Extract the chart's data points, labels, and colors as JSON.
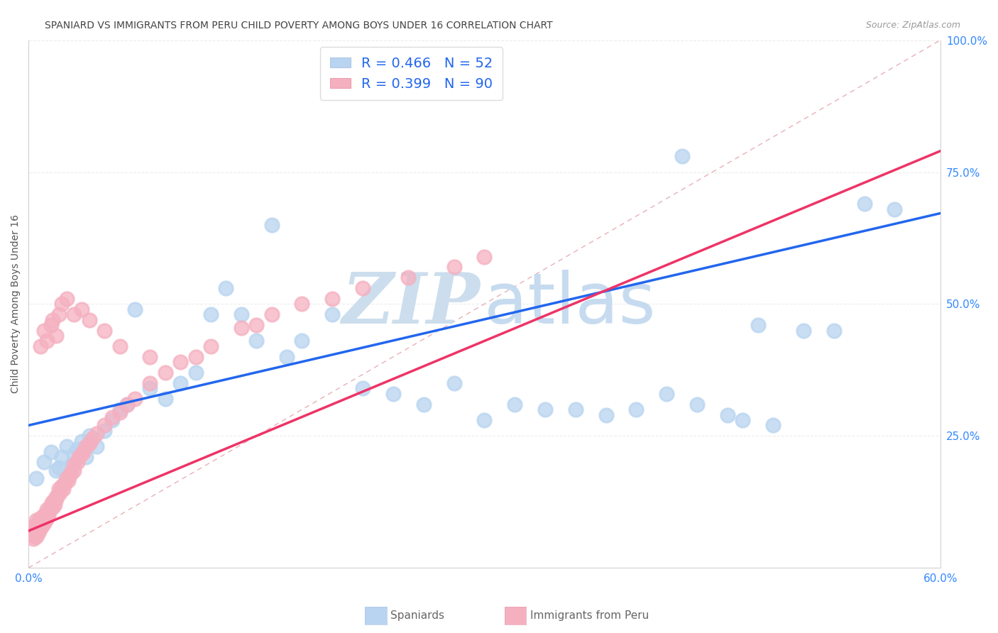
{
  "title": "SPANIARD VS IMMIGRANTS FROM PERU CHILD POVERTY AMONG BOYS UNDER 16 CORRELATION CHART",
  "source": "Source: ZipAtlas.com",
  "ylabel": "Child Poverty Among Boys Under 16",
  "xlim": [
    0.0,
    0.6
  ],
  "ylim": [
    0.0,
    1.0
  ],
  "spaniards_R": 0.466,
  "spaniards_N": 52,
  "peru_R": 0.399,
  "peru_N": 90,
  "spaniards_color": "#b8d4f0",
  "peru_color": "#f5b0c0",
  "spaniards_line_color": "#2266ee",
  "peru_line_color": "#ee3366",
  "ref_line_color": "#e0b0b0",
  "legend_text_color": "#2266ee",
  "tick_color": "#3388ff",
  "watermark_zip_color": "#d5e8f5",
  "watermark_atlas_color": "#c8dff0",
  "grid_color": "#e5e5e5",
  "title_color": "#444444",
  "source_color": "#999999",
  "sp_x": [
    0.005,
    0.01,
    0.015,
    0.018,
    0.02,
    0.022,
    0.025,
    0.028,
    0.03,
    0.032,
    0.035,
    0.038,
    0.04,
    0.045,
    0.05,
    0.055,
    0.06,
    0.065,
    0.07,
    0.08,
    0.09,
    0.1,
    0.11,
    0.12,
    0.13,
    0.14,
    0.15,
    0.16,
    0.17,
    0.18,
    0.2,
    0.22,
    0.24,
    0.26,
    0.28,
    0.3,
    0.32,
    0.34,
    0.36,
    0.38,
    0.4,
    0.42,
    0.44,
    0.46,
    0.47,
    0.49,
    0.51,
    0.53,
    0.55,
    0.57,
    0.43,
    0.48
  ],
  "sp_y": [
    0.17,
    0.2,
    0.22,
    0.185,
    0.19,
    0.21,
    0.23,
    0.195,
    0.215,
    0.225,
    0.24,
    0.21,
    0.25,
    0.23,
    0.26,
    0.28,
    0.3,
    0.31,
    0.49,
    0.34,
    0.32,
    0.35,
    0.37,
    0.48,
    0.53,
    0.48,
    0.43,
    0.65,
    0.4,
    0.43,
    0.48,
    0.34,
    0.33,
    0.31,
    0.35,
    0.28,
    0.31,
    0.3,
    0.3,
    0.29,
    0.3,
    0.33,
    0.31,
    0.29,
    0.28,
    0.27,
    0.45,
    0.45,
    0.69,
    0.68,
    0.78,
    0.46
  ],
  "pe_x": [
    0.002,
    0.003,
    0.003,
    0.004,
    0.004,
    0.005,
    0.005,
    0.005,
    0.006,
    0.006,
    0.006,
    0.007,
    0.007,
    0.007,
    0.008,
    0.008,
    0.008,
    0.009,
    0.009,
    0.01,
    0.01,
    0.01,
    0.011,
    0.011,
    0.012,
    0.012,
    0.013,
    0.013,
    0.014,
    0.015,
    0.015,
    0.016,
    0.016,
    0.017,
    0.018,
    0.018,
    0.02,
    0.02,
    0.021,
    0.022,
    0.023,
    0.024,
    0.025,
    0.026,
    0.027,
    0.028,
    0.03,
    0.03,
    0.032,
    0.033,
    0.035,
    0.036,
    0.038,
    0.04,
    0.042,
    0.045,
    0.05,
    0.055,
    0.06,
    0.065,
    0.07,
    0.08,
    0.09,
    0.1,
    0.11,
    0.12,
    0.14,
    0.15,
    0.16,
    0.18,
    0.2,
    0.22,
    0.25,
    0.28,
    0.3,
    0.015,
    0.02,
    0.018,
    0.022,
    0.025,
    0.012,
    0.008,
    0.01,
    0.016,
    0.03,
    0.035,
    0.04,
    0.05,
    0.06,
    0.08
  ],
  "pe_y": [
    0.065,
    0.055,
    0.07,
    0.06,
    0.08,
    0.06,
    0.07,
    0.09,
    0.065,
    0.075,
    0.08,
    0.07,
    0.085,
    0.09,
    0.075,
    0.085,
    0.095,
    0.08,
    0.09,
    0.085,
    0.095,
    0.1,
    0.09,
    0.1,
    0.095,
    0.11,
    0.1,
    0.105,
    0.11,
    0.115,
    0.12,
    0.115,
    0.125,
    0.12,
    0.13,
    0.135,
    0.14,
    0.15,
    0.145,
    0.155,
    0.15,
    0.16,
    0.17,
    0.165,
    0.175,
    0.18,
    0.185,
    0.195,
    0.2,
    0.21,
    0.215,
    0.22,
    0.23,
    0.235,
    0.245,
    0.255,
    0.27,
    0.285,
    0.295,
    0.31,
    0.32,
    0.35,
    0.37,
    0.39,
    0.4,
    0.42,
    0.455,
    0.46,
    0.48,
    0.5,
    0.51,
    0.53,
    0.55,
    0.57,
    0.59,
    0.46,
    0.48,
    0.44,
    0.5,
    0.51,
    0.43,
    0.42,
    0.45,
    0.47,
    0.48,
    0.49,
    0.47,
    0.45,
    0.42,
    0.4
  ]
}
